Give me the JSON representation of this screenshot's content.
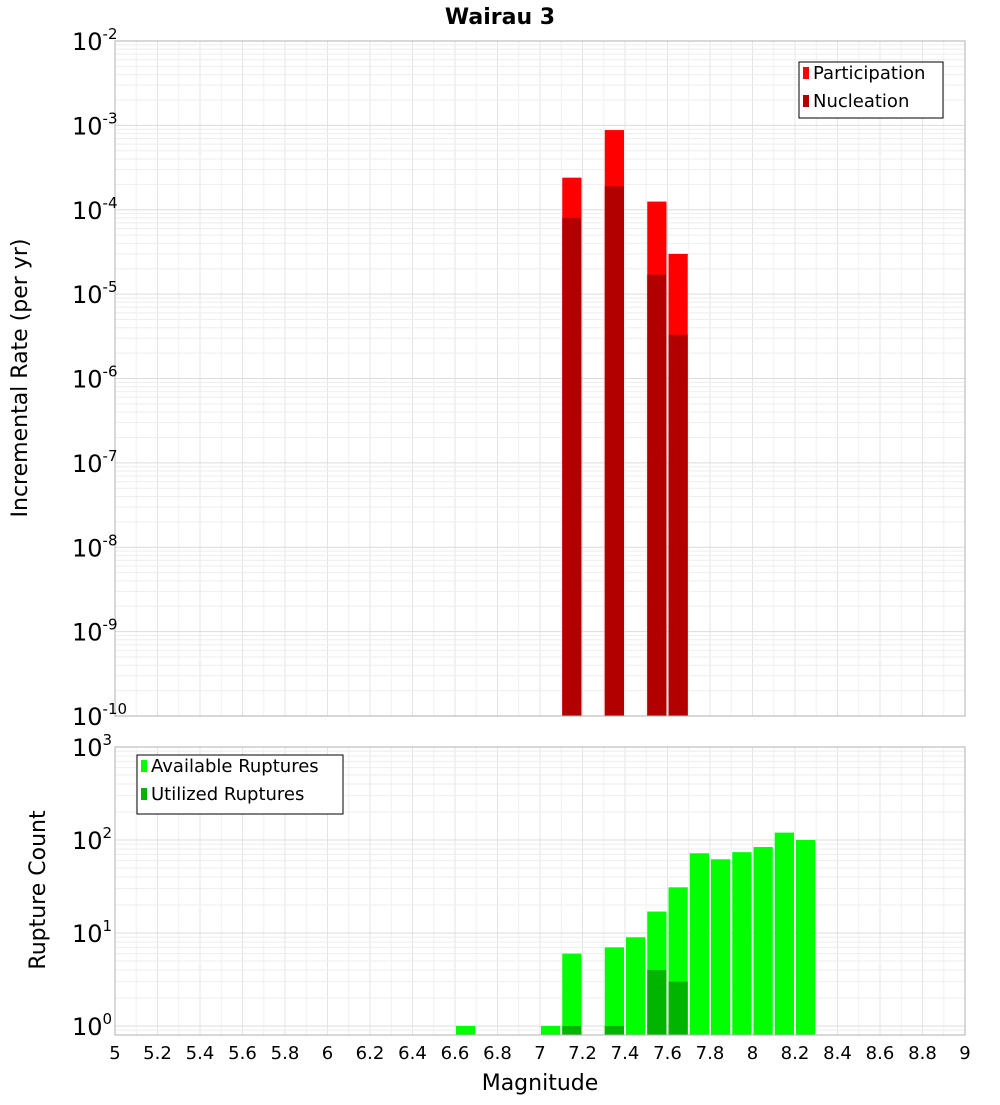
{
  "chart_data": {
    "title": "Wairau 3",
    "xlabel": "Magnitude",
    "xlim": [
      5,
      9
    ],
    "xticks": [
      "5",
      "5.2",
      "5.4",
      "5.6",
      "5.8",
      "6",
      "6.2",
      "6.4",
      "6.6",
      "6.8",
      "7",
      "7.2",
      "7.4",
      "7.6",
      "7.8",
      "8",
      "8.2",
      "8.4",
      "8.6",
      "8.8",
      "9"
    ],
    "bin_width": 0.1,
    "panels": [
      {
        "id": "rates",
        "type": "bar",
        "yscale": "log",
        "ylabel": "Incremental Rate (per yr)",
        "ylim": [
          1e-10,
          0.01
        ],
        "ytick_exponents": [
          "-10",
          "-9",
          "-8",
          "-7",
          "-6",
          "-5",
          "-4",
          "-3",
          "-2"
        ],
        "legend": {
          "position": "top-right",
          "entries": [
            "Participation",
            "Nucleation"
          ]
        },
        "series": [
          {
            "name": "Participation",
            "color": "#ff0000",
            "x": [
              7.15,
              7.35,
              7.55,
              7.65
            ],
            "values": [
              0.00024,
              0.00088,
              0.000125,
              3e-05
            ]
          },
          {
            "name": "Nucleation",
            "color": "#b20000",
            "x": [
              7.15,
              7.35,
              7.55,
              7.65
            ],
            "values": [
              8e-05,
              0.00019,
              1.7e-05,
              3.3e-06
            ]
          }
        ]
      },
      {
        "id": "counts",
        "type": "bar",
        "yscale": "log",
        "ylabel": "Rupture Count",
        "ylim": [
          0.8,
          1000
        ],
        "ytick_exponents": [
          "0",
          "1",
          "2",
          "3"
        ],
        "legend": {
          "position": "top-left",
          "entries": [
            "Available Ruptures",
            "Utilized Ruptures"
          ]
        },
        "series": [
          {
            "name": "Available Ruptures",
            "color": "#00ff00",
            "x": [
              6.65,
              7.05,
              7.15,
              7.35,
              7.45,
              7.55,
              7.65,
              7.75,
              7.85,
              7.95,
              8.05,
              8.15,
              8.25
            ],
            "values": [
              1,
              1,
              6,
              7,
              9,
              17,
              31,
              72,
              62,
              74,
              84,
              120,
              100
            ]
          },
          {
            "name": "Utilized Ruptures",
            "color": "#00b400",
            "x": [
              7.15,
              7.35,
              7.55,
              7.65
            ],
            "values": [
              1,
              1,
              4,
              3
            ]
          }
        ]
      }
    ]
  }
}
